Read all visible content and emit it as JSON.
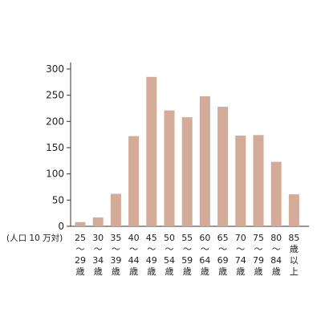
{
  "chart_data": {
    "type": "bar",
    "ylabel": "(人口 10 万対)",
    "ylim": [
      0,
      300
    ],
    "yticks": [
      0,
      50,
      100,
      150,
      200,
      250,
      300
    ],
    "grid": false,
    "bar_color": "#d4ab98",
    "categories": [
      [
        "25",
        "～",
        "29",
        "歳"
      ],
      [
        "30",
        "～",
        "34",
        "歳"
      ],
      [
        "35",
        "～",
        "39",
        "歳"
      ],
      [
        "40",
        "～",
        "44",
        "歳"
      ],
      [
        "45",
        "～",
        "49",
        "歳"
      ],
      [
        "50",
        "～",
        "54",
        "歳"
      ],
      [
        "55",
        "～",
        "59",
        "歳"
      ],
      [
        "60",
        "～",
        "64",
        "歳"
      ],
      [
        "65",
        "～",
        "69",
        "歳"
      ],
      [
        "70",
        "～",
        "74",
        "歳"
      ],
      [
        "75",
        "～",
        "79",
        "歳"
      ],
      [
        "80",
        "～",
        "84",
        "歳"
      ],
      [
        "85",
        "歳",
        "以",
        "上"
      ]
    ],
    "values": [
      8,
      17,
      62,
      172,
      285,
      221,
      208,
      248,
      228,
      173,
      174,
      123,
      61
    ]
  }
}
